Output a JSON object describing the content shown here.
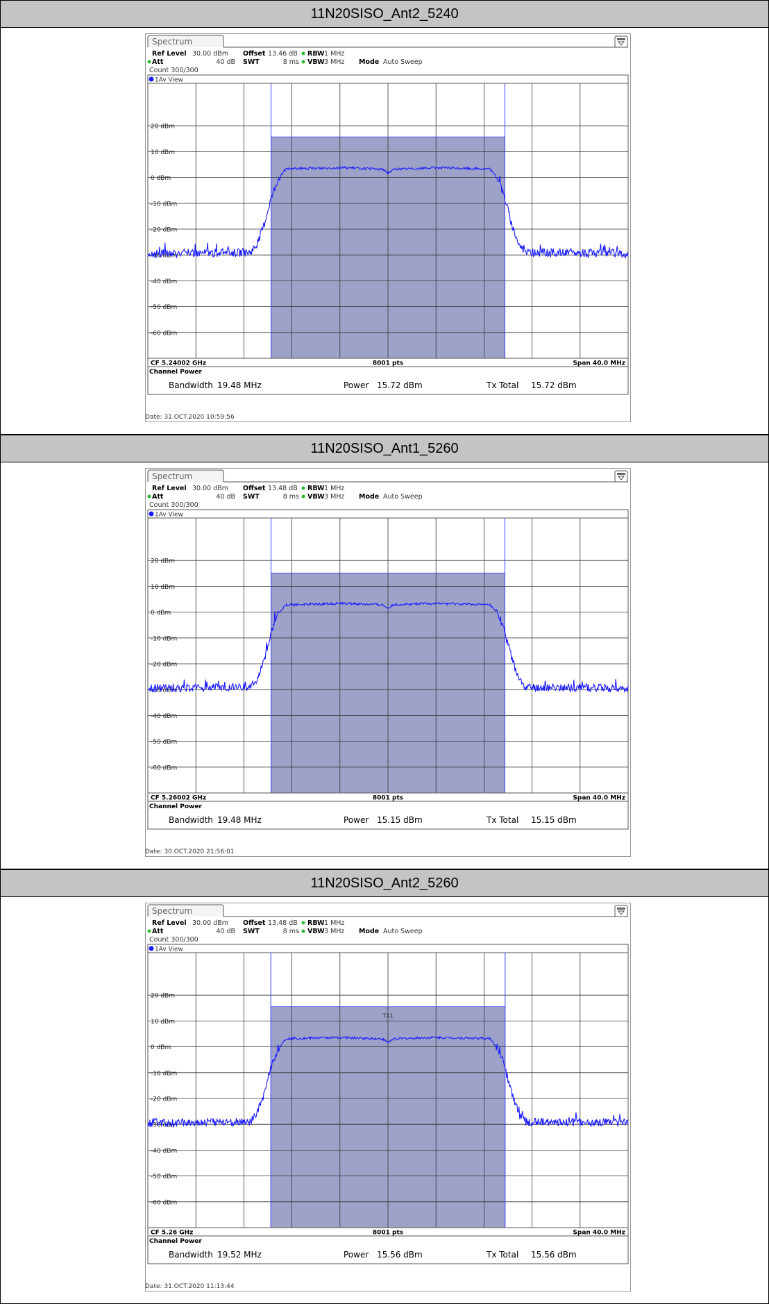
{
  "sections": [
    {
      "title": "11N20SISO_Ant2_5240",
      "analyzer": {
        "tab": "Spectrum",
        "ref_level_label": "Ref Level",
        "ref_level": "30.00 dBm",
        "offset_label": "Offset",
        "offset": "13.46 dB",
        "rbw_label": "RBW",
        "rbw": "1 MHz",
        "att_label": "Att",
        "att": "40 dB",
        "swt_label": "SWT",
        "swt": "8 ms",
        "vbw_label": "VBW",
        "vbw": "3 MHz",
        "mode_label": "Mode",
        "mode": "Auto Sweep",
        "count": "Count 300/300",
        "view": "1Av View",
        "cf": "CF 5.24002 GHz",
        "pts": "8001 pts",
        "span": "Span 40.0 MHz",
        "cp_title": "Channel Power",
        "bw_label": "Bandwidth",
        "bw": "19.48 MHz",
        "power_label": "Power",
        "power": "15.72 dBm",
        "tx_label": "Tx Total",
        "tx": "15.72 dBm",
        "tx_marker": ""
      },
      "date": "Date: 31.OCT.2020  10:59:56"
    },
    {
      "title": "11N20SISO_Ant1_5260",
      "analyzer": {
        "tab": "Spectrum",
        "ref_level_label": "Ref Level",
        "ref_level": "30.00 dBm",
        "offset_label": "Offset",
        "offset": "13.48 dB",
        "rbw_label": "RBW",
        "rbw": "1 MHz",
        "att_label": "Att",
        "att": "40 dB",
        "swt_label": "SWT",
        "swt": "8 ms",
        "vbw_label": "VBW",
        "vbw": "3 MHz",
        "mode_label": "Mode",
        "mode": "Auto Sweep",
        "count": "Count 300/300",
        "view": "1Av View",
        "cf": "CF 5.26002 GHz",
        "pts": "8001 pts",
        "span": "Span 40.0 MHz",
        "cp_title": "Channel Power",
        "bw_label": "Bandwidth",
        "bw": "19.48 MHz",
        "power_label": "Power",
        "power": "15.15 dBm",
        "tx_label": "Tx Total",
        "tx": "15.15 dBm",
        "tx_marker": ""
      },
      "date": "Date: 30.OCT.2020  21:56:01"
    },
    {
      "title": "11N20SISO_Ant2_5260",
      "analyzer": {
        "tab": "Spectrum",
        "ref_level_label": "Ref Level",
        "ref_level": "30.00 dBm",
        "offset_label": "Offset",
        "offset": "13.48 dB",
        "rbw_label": "RBW",
        "rbw": "1 MHz",
        "att_label": "Att",
        "att": "40 dB",
        "swt_label": "SWT",
        "swt": "8 ms",
        "vbw_label": "VBW",
        "vbw": "3 MHz",
        "mode_label": "Mode",
        "mode": "Auto Sweep",
        "count": "Count 300/300",
        "view": "1Av View",
        "cf": "CF 5.26 GHz",
        "pts": "8001 pts",
        "span": "Span 40.0 MHz",
        "cp_title": "Channel Power",
        "bw_label": "Bandwidth",
        "bw": "19.52 MHz",
        "power_label": "Power",
        "power": "15.56 dBm",
        "tx_label": "Tx Total",
        "tx": "15.56 dBm",
        "tx_marker": "TX1"
      },
      "date": "Date: 31.OCT.2020  11:13:44"
    }
  ],
  "chart_data": [
    {
      "type": "line",
      "ylim": [
        -70,
        30
      ],
      "y_ticks": [
        "20 dBm",
        "10 dBm",
        "0 dBm",
        "-10 dBm",
        "-20 dBm",
        "-30 dBm",
        "-40 dBm",
        "-50 dBm",
        "-60 dBm"
      ],
      "xlim_mhz": [
        -20,
        20
      ],
      "channel_mhz": [
        -9.74,
        9.74
      ],
      "channel_level_dbm": 15.72,
      "series": [
        {
          "x_mhz": [
            -20,
            -11.5,
            -10.9,
            -10.3,
            -9.8,
            -9.2,
            -8.5,
            -4,
            -0.5,
            0,
            0.5,
            4,
            8.5,
            9.2,
            9.8,
            10.3,
            10.9,
            11.5,
            20
          ],
          "y_dbm": [
            -29.5,
            -29,
            -26,
            -18,
            -9,
            -1,
            3.3,
            3.8,
            3.2,
            1.8,
            3.2,
            3.8,
            3.3,
            -1,
            -9,
            -18,
            -26,
            -29,
            -29.5
          ]
        }
      ],
      "series_color": "#1a1aff"
    },
    {
      "type": "line",
      "ylim": [
        -70,
        30
      ],
      "y_ticks": [
        "20 dBm",
        "10 dBm",
        "0 dBm",
        "-10 dBm",
        "-20 dBm",
        "-30 dBm",
        "-40 dBm",
        "-50 dBm",
        "-60 dBm"
      ],
      "xlim_mhz": [
        -20,
        20
      ],
      "channel_mhz": [
        -9.74,
        9.74
      ],
      "channel_level_dbm": 15.15,
      "series": [
        {
          "x_mhz": [
            -20,
            -11.5,
            -10.9,
            -10.3,
            -9.8,
            -9.2,
            -8.5,
            -4,
            -0.5,
            0,
            0.5,
            4,
            8.5,
            9.2,
            9.8,
            10.3,
            10.9,
            11.5,
            20
          ],
          "y_dbm": [
            -29.5,
            -29,
            -26,
            -18,
            -9,
            -1,
            2.8,
            3.4,
            2.9,
            1.6,
            2.9,
            3.4,
            2.8,
            -1,
            -9,
            -18,
            -26,
            -29,
            -29.5
          ]
        }
      ],
      "series_color": "#1a1aff"
    },
    {
      "type": "line",
      "ylim": [
        -70,
        30
      ],
      "y_ticks": [
        "20 dBm",
        "10 dBm",
        "0 dBm",
        "-10 dBm",
        "-20 dBm",
        "-30 dBm",
        "-40 dBm",
        "-50 dBm",
        "-60 dBm"
      ],
      "xlim_mhz": [
        -20,
        20
      ],
      "channel_mhz": [
        -9.76,
        9.76
      ],
      "channel_level_dbm": 15.56,
      "series": [
        {
          "x_mhz": [
            -20,
            -11.5,
            -10.9,
            -10.3,
            -9.8,
            -9.2,
            -8.5,
            -4,
            -0.5,
            0,
            0.5,
            4,
            8.5,
            9.2,
            9.8,
            10.3,
            10.9,
            11.5,
            20
          ],
          "y_dbm": [
            -29.5,
            -29,
            -26,
            -18,
            -9,
            -1,
            3.2,
            3.6,
            3.1,
            1.7,
            3.1,
            3.6,
            3.2,
            -1,
            -9,
            -18,
            -26,
            -29,
            -29.5
          ]
        }
      ],
      "series_color": "#1a1aff"
    }
  ]
}
